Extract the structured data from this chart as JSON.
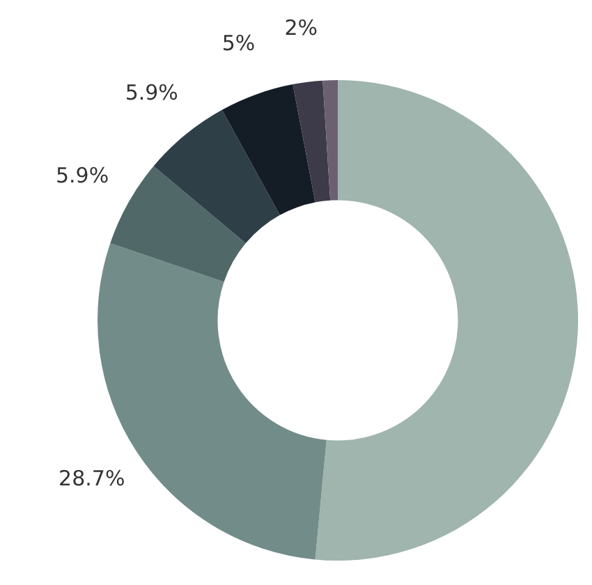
{
  "chart_data": {
    "type": "donut",
    "categories": [
      null,
      null,
      null,
      null,
      null,
      null,
      null
    ],
    "values": [
      51.5,
      28.7,
      5.9,
      5.9,
      5,
      2,
      1
    ],
    "value_labels": [
      null,
      "28.7%",
      "5.9%",
      "5.9%",
      "5%",
      "2%",
      null
    ],
    "colors": [
      "#9fb5ad",
      "#728c89",
      "#506868",
      "#2e3f48",
      "#141c26",
      "#3d3a49",
      "#6a6070"
    ],
    "legend": false
  }
}
